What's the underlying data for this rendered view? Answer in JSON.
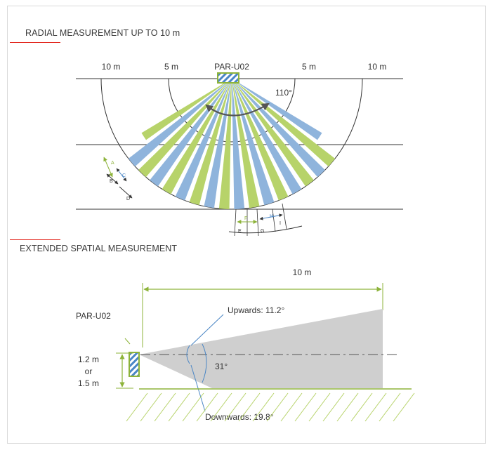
{
  "section1": {
    "title": "RADIAL MEASUREMENT UP TO 10 m"
  },
  "section2": {
    "title": "EXTENDED SPATIAL MEASUREMENT"
  },
  "radial": {
    "labels_left": [
      "10 m",
      "5 m"
    ],
    "device": "PAR-U02",
    "labels_right": [
      "5 m",
      "10 m"
    ],
    "angle": "110°",
    "letters": [
      "A",
      "B",
      "C",
      "D",
      "E",
      "F",
      "G",
      "H",
      "I"
    ]
  },
  "spatial": {
    "range": "10 m",
    "device": "PAR-U02",
    "upwards": "Upwards: 11.2°",
    "downwards": "Downwards: 19.8°",
    "angle": "31°",
    "height_line1": "1.2 m",
    "height_line2": "or",
    "height_line3": "1.5 m"
  },
  "colors": {
    "green": "#b7d36a",
    "blue": "#8fb4dc",
    "red": "#e2231a",
    "grey_fill": "#cfcfcf"
  }
}
